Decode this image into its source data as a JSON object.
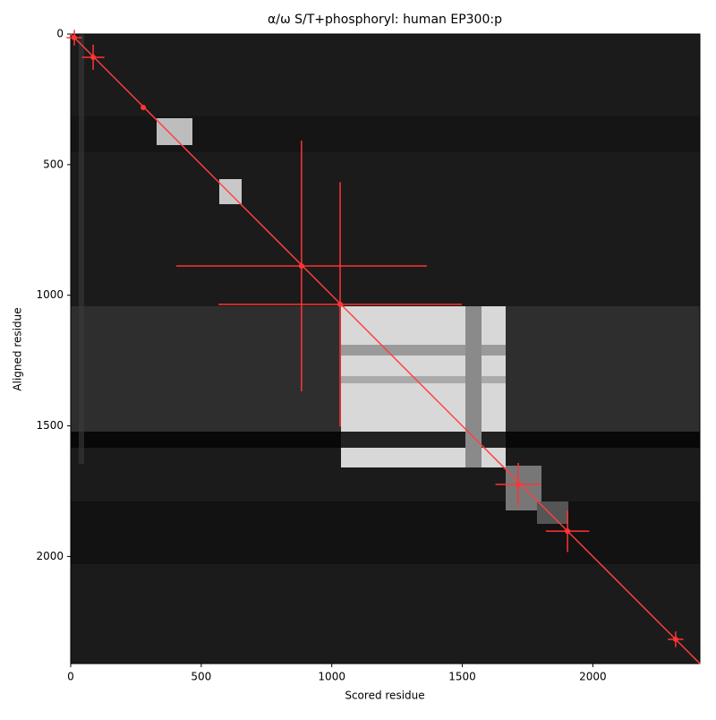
{
  "chart_data": {
    "type": "scatter",
    "title": "α/ω S/T+phosphoryl: human EP300:p",
    "x_label": "Scored residue",
    "y_label": "Aligned residue",
    "xlim": [
      0,
      2410
    ],
    "ylim": [
      2410,
      0
    ],
    "xticks": [
      0,
      500,
      1000,
      1500,
      2000
    ],
    "yticks": [
      0,
      500,
      1000,
      1500,
      2000
    ],
    "diagonal": {
      "x": [
        0,
        2410
      ],
      "y": [
        0,
        2410
      ],
      "color": "#ff4040"
    },
    "series": [
      {
        "color": "#ff3333",
        "x": [
          14,
          86,
          278,
          884,
          1032,
          1714,
          1903,
          2317
        ],
        "y": [
          14,
          89,
          281,
          888,
          1035,
          1724,
          1903,
          2317
        ],
        "xerr": [
          30,
          43,
          10,
          480,
          466,
          87,
          83,
          30
        ],
        "yerr": [
          30,
          48,
          10,
          480,
          468,
          82,
          80,
          30
        ]
      }
    ]
  }
}
